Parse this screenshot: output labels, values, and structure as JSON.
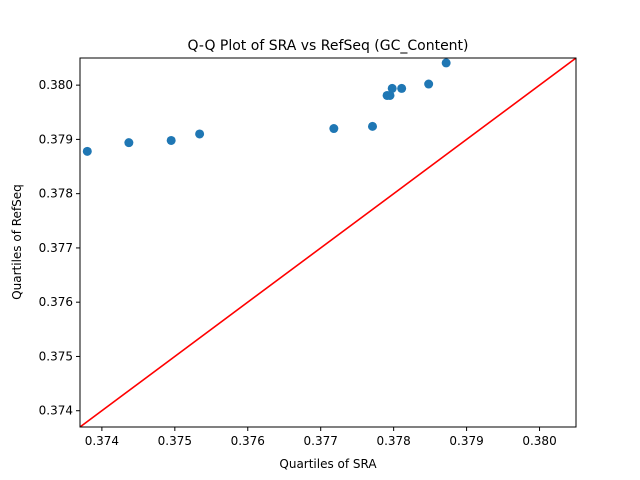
{
  "chart_data": {
    "type": "scatter",
    "title": "Q-Q Plot of SRA vs RefSeq (GC_Content)",
    "xlabel": "Quartiles of SRA",
    "ylabel": "Quartiles of RefSeq",
    "xlim": [
      0.3737,
      0.3805
    ],
    "ylim": [
      0.3737,
      0.3805
    ],
    "x_ticks": [
      0.374,
      0.375,
      0.376,
      0.377,
      0.378,
      0.379,
      0.38
    ],
    "x_tick_labels": [
      "0.374",
      "0.375",
      "0.376",
      "0.377",
      "0.378",
      "0.379",
      "0.380"
    ],
    "y_ticks": [
      0.374,
      0.375,
      0.376,
      0.377,
      0.378,
      0.379,
      0.38
    ],
    "y_tick_labels": [
      "0.374",
      "0.375",
      "0.376",
      "0.377",
      "0.378",
      "0.379",
      "0.380"
    ],
    "grid": false,
    "series": [
      {
        "kind": "points",
        "color": "#1f77b4",
        "x": [
          0.3738,
          0.37437,
          0.37495,
          0.37534,
          0.37718,
          0.37771,
          0.37791,
          0.37795,
          0.37798,
          0.37811,
          0.37848,
          0.37872
        ],
        "y": [
          0.37878,
          0.37894,
          0.37898,
          0.3791,
          0.3792,
          0.37924,
          0.37981,
          0.37981,
          0.37994,
          0.37994,
          0.38002,
          0.38041
        ]
      },
      {
        "kind": "reference-line",
        "color": "#ff0000",
        "x": [
          0.3737,
          0.3805
        ],
        "y": [
          0.3737,
          0.3805
        ]
      }
    ]
  }
}
